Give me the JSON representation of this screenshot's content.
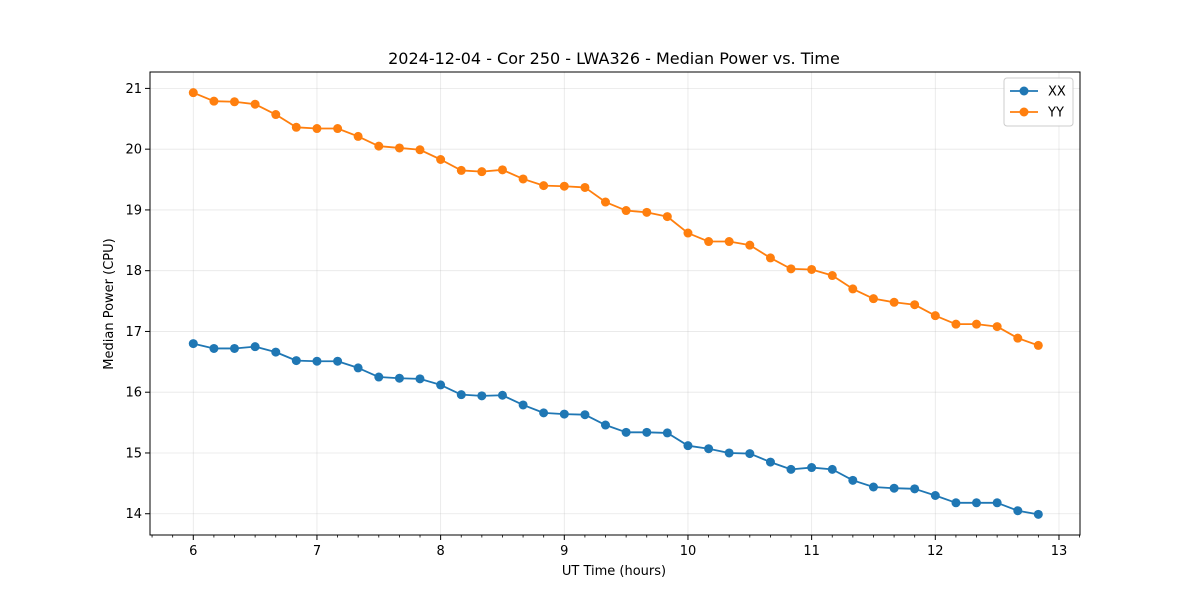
{
  "chart_data": {
    "type": "line",
    "title": "2024-12-04 - Cor 250 - LWA326 - Median Power vs. Time",
    "xlabel": "UT Time (hours)",
    "ylabel": "Median Power (CPU)",
    "xlim": [
      5.65,
      13.17
    ],
    "ylim": [
      13.65,
      21.27
    ],
    "xticks": [
      6,
      7,
      8,
      9,
      10,
      11,
      12,
      13
    ],
    "yticks": [
      14,
      15,
      16,
      17,
      18,
      19,
      20,
      21
    ],
    "grid": true,
    "legend_position": "top-right",
    "x": [
      6.0,
      6.167,
      6.333,
      6.5,
      6.667,
      6.833,
      7.0,
      7.167,
      7.333,
      7.5,
      7.667,
      7.833,
      8.0,
      8.167,
      8.333,
      8.5,
      8.667,
      8.833,
      9.0,
      9.167,
      9.333,
      9.5,
      9.667,
      9.833,
      10.0,
      10.167,
      10.333,
      10.5,
      10.667,
      10.833,
      11.0,
      11.167,
      11.333,
      11.5,
      11.667,
      11.833,
      12.0,
      12.167,
      12.333,
      12.5,
      12.667,
      12.833
    ],
    "series": [
      {
        "name": "XX",
        "color": "#1f77b4",
        "values": [
          16.8,
          16.72,
          16.72,
          16.75,
          16.66,
          16.52,
          16.51,
          16.51,
          16.4,
          16.25,
          16.23,
          16.22,
          16.12,
          15.96,
          15.94,
          15.95,
          15.79,
          15.66,
          15.64,
          15.63,
          15.46,
          15.34,
          15.34,
          15.33,
          15.12,
          15.07,
          15.0,
          14.99,
          14.85,
          14.73,
          14.76,
          14.73,
          14.55,
          14.44,
          14.42,
          14.41,
          14.3,
          14.18,
          14.18,
          14.18,
          14.05,
          13.99
        ]
      },
      {
        "name": "YY",
        "color": "#ff7f0e",
        "values": [
          20.93,
          20.79,
          20.78,
          20.74,
          20.57,
          20.36,
          20.34,
          20.34,
          20.21,
          20.05,
          20.02,
          19.99,
          19.83,
          19.65,
          19.63,
          19.66,
          19.51,
          19.4,
          19.39,
          19.37,
          19.13,
          18.99,
          18.96,
          18.89,
          18.62,
          18.48,
          18.48,
          18.42,
          18.21,
          18.03,
          18.02,
          17.92,
          17.7,
          17.54,
          17.48,
          17.44,
          17.26,
          17.12,
          17.12,
          17.08,
          16.89,
          16.77
        ]
      }
    ]
  }
}
